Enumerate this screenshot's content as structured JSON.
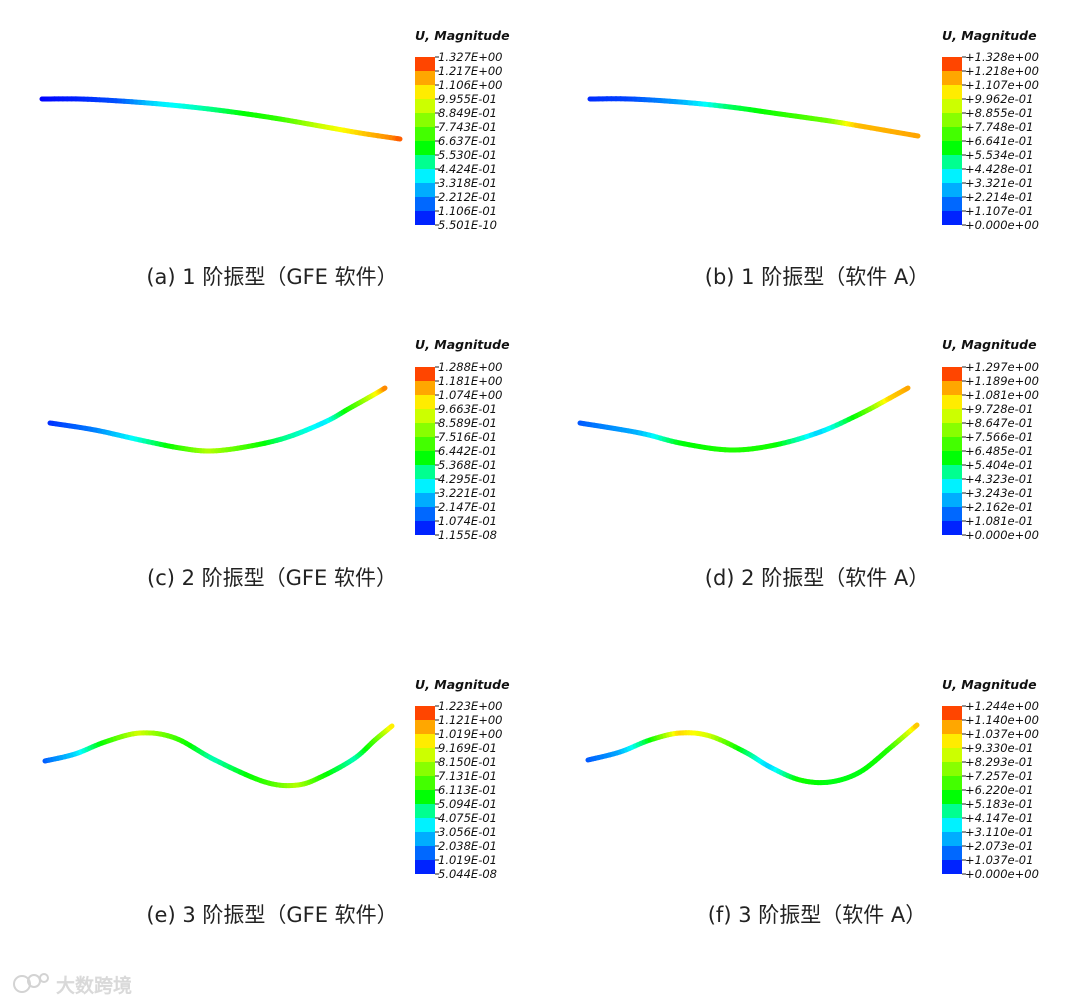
{
  "colormap": [
    "#0000ff",
    "#0040ff",
    "#0080ff",
    "#00bfff",
    "#00ffff",
    "#00ff80",
    "#00ff00",
    "#40ff00",
    "#80ff00",
    "#bfff00",
    "#ffff00",
    "#ffbf00",
    "#ff8000",
    "#ff0000"
  ],
  "panels": [
    {
      "id": "a",
      "legend_title": "U, Magnitude",
      "ticks": [
        "1.327E+00",
        "1.217E+00",
        "1.106E+00",
        "9.955E-01",
        "8.849E-01",
        "7.743E-01",
        "6.637E-01",
        "5.530E-01",
        "4.424E-01",
        "3.318E-01",
        "2.212E-01",
        "1.106E-01",
        "5.501E-10"
      ],
      "caption": "(a)  1 阶振型（GFE 软件）",
      "mode_shape": [
        [
          42,
          99,
          0.0
        ],
        [
          80,
          99,
          0.04
        ],
        [
          120,
          101,
          0.1
        ],
        [
          160,
          104,
          0.28
        ],
        [
          200,
          108,
          0.35
        ],
        [
          240,
          113,
          0.45
        ],
        [
          280,
          119,
          0.52
        ],
        [
          320,
          126,
          0.7
        ],
        [
          360,
          133,
          0.82
        ],
        [
          400,
          139,
          0.95
        ]
      ]
    },
    {
      "id": "b",
      "legend_title": "U, Magnitude",
      "ticks": [
        "+1.328e+00",
        "+1.218e+00",
        "+1.107e+00",
        "+9.962e-01",
        "+8.855e-01",
        "+7.748e-01",
        "+6.641e-01",
        "+5.534e-01",
        "+4.428e-01",
        "+3.321e-01",
        "+2.214e-01",
        "+1.107e-01",
        "+0.000e+00"
      ],
      "caption": "(b)  1 阶振型（软件 A）",
      "mode_shape": [
        [
          590,
          99,
          0.05
        ],
        [
          630,
          99,
          0.08
        ],
        [
          680,
          102,
          0.2
        ],
        [
          730,
          107,
          0.4
        ],
        [
          780,
          114,
          0.5
        ],
        [
          830,
          121,
          0.6
        ],
        [
          860,
          126,
          0.85
        ],
        [
          918,
          136,
          0.88
        ]
      ]
    },
    {
      "id": "c",
      "legend_title": "U, Magnitude",
      "ticks": [
        "1.288E+00",
        "1.181E+00",
        "1.074E+00",
        "9.663E-01",
        "8.589E-01",
        "7.516E-01",
        "6.442E-01",
        "5.368E-01",
        "4.295E-01",
        "3.221E-01",
        "2.147E-01",
        "1.074E-01",
        "1.155E-08"
      ],
      "caption": "(c)  2 阶振型（GFE 软件）",
      "mode_shape": [
        [
          50,
          423,
          0.05
        ],
        [
          95,
          430,
          0.15
        ],
        [
          140,
          440,
          0.33
        ],
        [
          180,
          448,
          0.52
        ],
        [
          210,
          451,
          0.68
        ],
        [
          245,
          447,
          0.55
        ],
        [
          285,
          438,
          0.38
        ],
        [
          325,
          422,
          0.28
        ],
        [
          350,
          408,
          0.5
        ],
        [
          375,
          394,
          0.75
        ],
        [
          385,
          388,
          0.92
        ]
      ]
    },
    {
      "id": "d",
      "legend_title": "U, Magnitude",
      "ticks": [
        "+1.297e+00",
        "+1.189e+00",
        "+1.081e+00",
        "+9.728e-01",
        "+8.647e-01",
        "+7.566e-01",
        "+6.485e-01",
        "+5.404e-01",
        "+4.323e-01",
        "+3.243e-01",
        "+2.162e-01",
        "+1.081e-01",
        "+0.000e+00"
      ],
      "caption": "(d)  2 阶振型（软件 A）",
      "mode_shape": [
        [
          580,
          423,
          0.1
        ],
        [
          640,
          433,
          0.22
        ],
        [
          680,
          443,
          0.45
        ],
        [
          730,
          450,
          0.5
        ],
        [
          775,
          445,
          0.48
        ],
        [
          820,
          432,
          0.25
        ],
        [
          860,
          414,
          0.5
        ],
        [
          890,
          398,
          0.82
        ],
        [
          908,
          388,
          0.88
        ]
      ]
    },
    {
      "id": "e",
      "legend_title": "U, Magnitude",
      "ticks": [
        "1.223E+00",
        "1.121E+00",
        "1.019E+00",
        "9.169E-01",
        "8.150E-01",
        "7.131E-01",
        "6.113E-01",
        "5.094E-01",
        "4.075E-01",
        "3.056E-01",
        "2.038E-01",
        "1.019E-01",
        "5.044E-08"
      ],
      "caption": "(e)  3 阶振型（GFE 软件）",
      "mode_shape": [
        [
          45,
          761,
          0.1
        ],
        [
          75,
          754,
          0.25
        ],
        [
          105,
          742,
          0.48
        ],
        [
          140,
          733,
          0.72
        ],
        [
          175,
          738,
          0.55
        ],
        [
          215,
          760,
          0.35
        ],
        [
          265,
          782,
          0.52
        ],
        [
          298,
          785,
          0.68
        ],
        [
          325,
          775,
          0.48
        ],
        [
          355,
          758,
          0.35
        ],
        [
          375,
          740,
          0.55
        ],
        [
          392,
          726,
          0.8
        ]
      ]
    },
    {
      "id": "f",
      "legend_title": "U, Magnitude",
      "ticks": [
        "+1.244e+00",
        "+1.140e+00",
        "+1.037e+00",
        "+9.330e-01",
        "+8.293e-01",
        "+7.257e-01",
        "+6.220e-01",
        "+5.183e-01",
        "+4.147e-01",
        "+3.110e-01",
        "+2.073e-01",
        "+1.037e-01",
        "+0.000e+00"
      ],
      "caption": "(f)  3 阶振型（软件 A）",
      "mode_shape": [
        [
          588,
          760,
          0.1
        ],
        [
          620,
          752,
          0.2
        ],
        [
          650,
          740,
          0.45
        ],
        [
          680,
          733,
          0.82
        ],
        [
          710,
          736,
          0.72
        ],
        [
          745,
          752,
          0.42
        ],
        [
          770,
          767,
          0.25
        ],
        [
          800,
          780,
          0.48
        ],
        [
          830,
          782,
          0.45
        ],
        [
          860,
          772,
          0.45
        ],
        [
          890,
          748,
          0.5
        ],
        [
          917,
          725,
          0.85
        ]
      ]
    }
  ],
  "watermark": "大数跨境"
}
